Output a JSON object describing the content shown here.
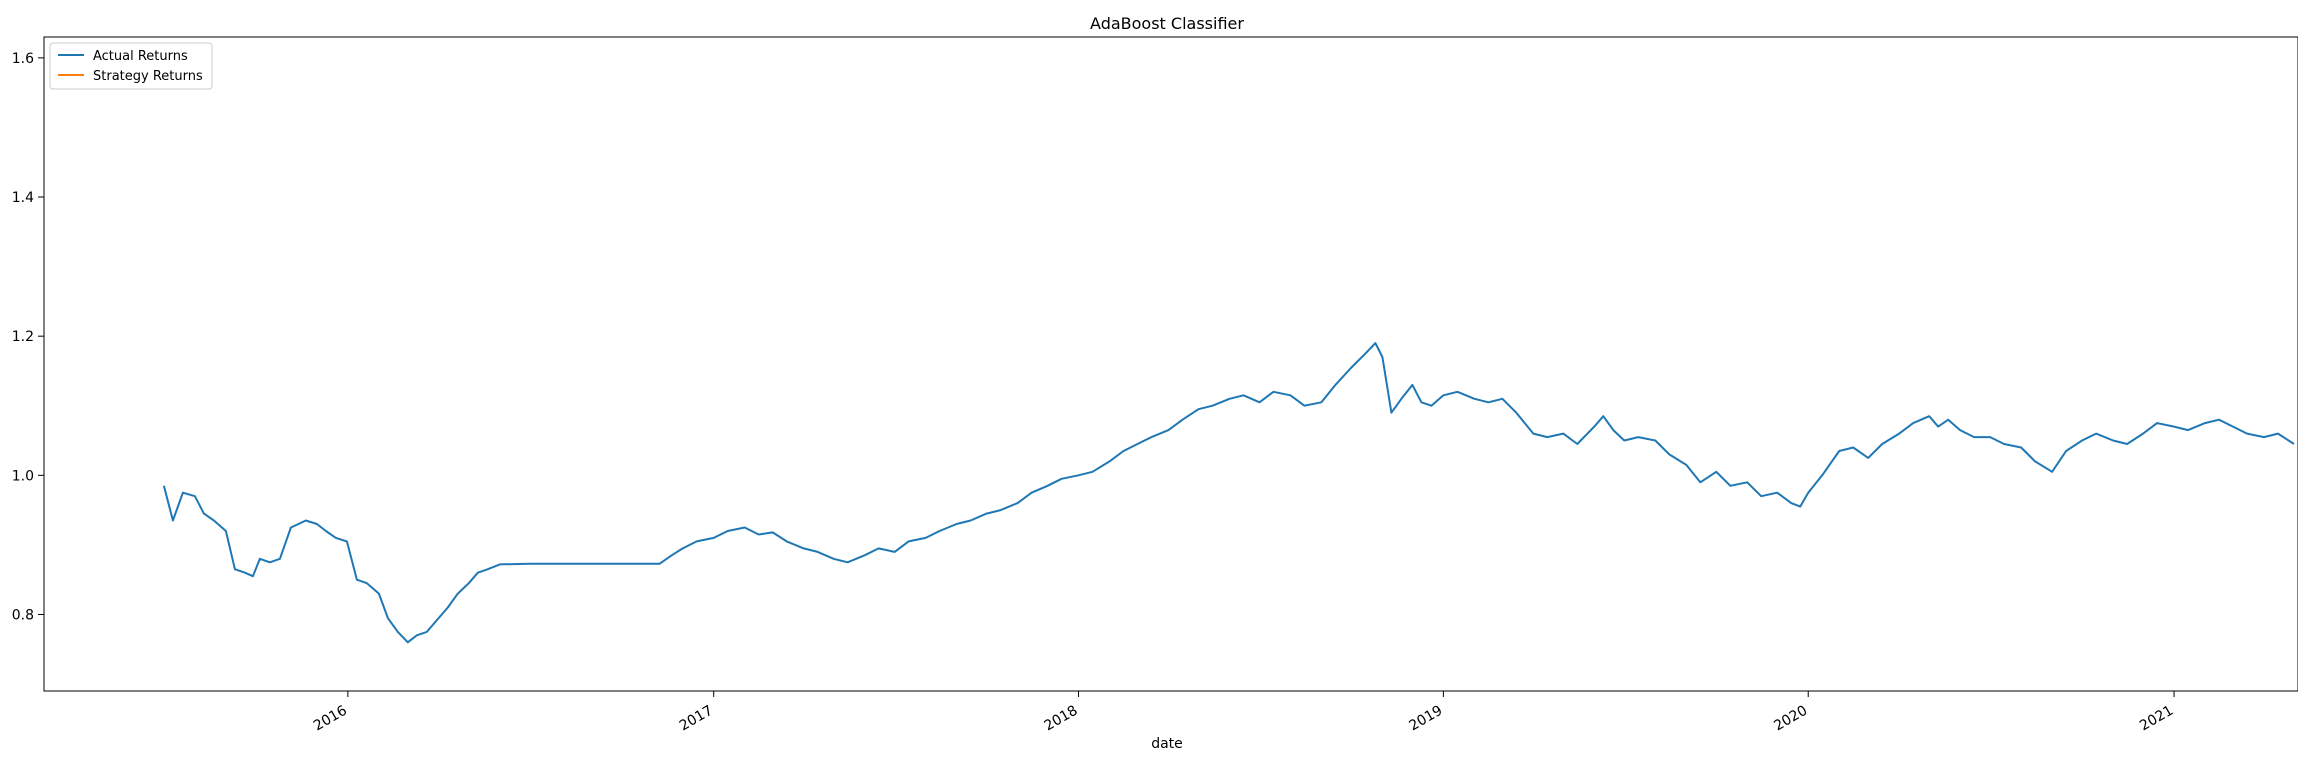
{
  "chart_data": {
    "type": "line",
    "title": "AdaBoost Classifier",
    "xlabel": "date",
    "ylabel": "",
    "ylim": [
      0.69,
      1.63
    ],
    "xlim": [
      "2015-03-03",
      "2021-05-05"
    ],
    "grid": false,
    "legend_position": "upper-left",
    "x_ticks": [
      "2016",
      "2017",
      "2018",
      "2019",
      "2020",
      "2021"
    ],
    "y_ticks": [
      "0.8",
      "1.0",
      "1.2",
      "1.4",
      "1.6"
    ],
    "colors": {
      "actual": "#1f77b4",
      "strategy": "#ff7f0e"
    },
    "series": [
      {
        "name": "Actual Returns",
        "points": [
          [
            "2015-07-01",
            0.985
          ],
          [
            "2015-07-10",
            0.935
          ],
          [
            "2015-07-20",
            0.975
          ],
          [
            "2015-08-01",
            0.97
          ],
          [
            "2015-08-10",
            0.945
          ],
          [
            "2015-08-20",
            0.935
          ],
          [
            "2015-09-01",
            0.92
          ],
          [
            "2015-09-10",
            0.865
          ],
          [
            "2015-09-20",
            0.86
          ],
          [
            "2015-09-28",
            0.855
          ],
          [
            "2015-10-05",
            0.88
          ],
          [
            "2015-10-15",
            0.875
          ],
          [
            "2015-10-25",
            0.88
          ],
          [
            "2015-11-05",
            0.925
          ],
          [
            "2015-11-20",
            0.935
          ],
          [
            "2015-12-01",
            0.93
          ],
          [
            "2015-12-10",
            0.92
          ],
          [
            "2015-12-20",
            0.91
          ],
          [
            "2015-12-31",
            0.905
          ],
          [
            "2016-01-10",
            0.85
          ],
          [
            "2016-01-20",
            0.845
          ],
          [
            "2016-02-01",
            0.83
          ],
          [
            "2016-02-10",
            0.795
          ],
          [
            "2016-02-20",
            0.775
          ],
          [
            "2016-03-01",
            0.76
          ],
          [
            "2016-03-10",
            0.77
          ],
          [
            "2016-03-20",
            0.775
          ],
          [
            "2016-04-01",
            0.795
          ],
          [
            "2016-04-10",
            0.81
          ],
          [
            "2016-04-20",
            0.83
          ],
          [
            "2016-05-01",
            0.845
          ],
          [
            "2016-05-10",
            0.86
          ],
          [
            "2016-05-20",
            0.865
          ],
          [
            "2016-06-01",
            0.872
          ],
          [
            "2016-07-01",
            0.873
          ],
          [
            "2016-11-08",
            0.873
          ],
          [
            "2016-11-20",
            0.885
          ],
          [
            "2016-12-01",
            0.895
          ],
          [
            "2016-12-15",
            0.905
          ],
          [
            "2017-01-01",
            0.91
          ],
          [
            "2017-01-15",
            0.92
          ],
          [
            "2017-02-01",
            0.925
          ],
          [
            "2017-02-15",
            0.915
          ],
          [
            "2017-03-01",
            0.918
          ],
          [
            "2017-03-15",
            0.905
          ],
          [
            "2017-04-01",
            0.895
          ],
          [
            "2017-04-15",
            0.89
          ],
          [
            "2017-05-01",
            0.88
          ],
          [
            "2017-05-15",
            0.875
          ],
          [
            "2017-06-01",
            0.885
          ],
          [
            "2017-06-15",
            0.895
          ],
          [
            "2017-07-01",
            0.89
          ],
          [
            "2017-07-15",
            0.905
          ],
          [
            "2017-08-01",
            0.91
          ],
          [
            "2017-08-15",
            0.92
          ],
          [
            "2017-09-01",
            0.93
          ],
          [
            "2017-09-15",
            0.935
          ],
          [
            "2017-10-01",
            0.945
          ],
          [
            "2017-10-15",
            0.95
          ],
          [
            "2017-11-01",
            0.96
          ],
          [
            "2017-11-15",
            0.975
          ],
          [
            "2017-12-01",
            0.985
          ],
          [
            "2017-12-15",
            0.995
          ],
          [
            "2018-01-01",
            1.0
          ],
          [
            "2018-01-15",
            1.005
          ],
          [
            "2018-02-01",
            1.02
          ],
          [
            "2018-02-15",
            1.035
          ],
          [
            "2018-03-01",
            1.045
          ],
          [
            "2018-03-15",
            1.055
          ],
          [
            "2018-04-01",
            1.065
          ],
          [
            "2018-04-15",
            1.08
          ],
          [
            "2018-05-01",
            1.095
          ],
          [
            "2018-05-15",
            1.1
          ],
          [
            "2018-06-01",
            1.11
          ],
          [
            "2018-06-15",
            1.115
          ],
          [
            "2018-07-01",
            1.105
          ],
          [
            "2018-07-15",
            1.12
          ],
          [
            "2018-08-01",
            1.115
          ],
          [
            "2018-08-15",
            1.1
          ],
          [
            "2018-09-01",
            1.105
          ],
          [
            "2018-09-15",
            1.13
          ],
          [
            "2018-10-01",
            1.155
          ],
          [
            "2018-10-15",
            1.175
          ],
          [
            "2018-10-25",
            1.19
          ],
          [
            "2018-11-01",
            1.17
          ],
          [
            "2018-11-10",
            1.09
          ],
          [
            "2018-11-20",
            1.11
          ],
          [
            "2018-12-01",
            1.13
          ],
          [
            "2018-12-10",
            1.105
          ],
          [
            "2018-12-20",
            1.1
          ],
          [
            "2019-01-01",
            1.115
          ],
          [
            "2019-01-15",
            1.12
          ],
          [
            "2019-02-01",
            1.11
          ],
          [
            "2019-02-15",
            1.105
          ],
          [
            "2019-03-01",
            1.11
          ],
          [
            "2019-03-15",
            1.09
          ],
          [
            "2019-04-01",
            1.06
          ],
          [
            "2019-04-15",
            1.055
          ],
          [
            "2019-05-01",
            1.06
          ],
          [
            "2019-05-15",
            1.045
          ],
          [
            "2019-06-01",
            1.07
          ],
          [
            "2019-06-10",
            1.085
          ],
          [
            "2019-06-20",
            1.065
          ],
          [
            "2019-07-01",
            1.05
          ],
          [
            "2019-07-15",
            1.055
          ],
          [
            "2019-08-01",
            1.05
          ],
          [
            "2019-08-15",
            1.03
          ],
          [
            "2019-09-01",
            1.015
          ],
          [
            "2019-09-15",
            0.99
          ],
          [
            "2019-10-01",
            1.005
          ],
          [
            "2019-10-15",
            0.985
          ],
          [
            "2019-11-01",
            0.99
          ],
          [
            "2019-11-15",
            0.97
          ],
          [
            "2019-12-01",
            0.975
          ],
          [
            "2019-12-15",
            0.96
          ],
          [
            "2019-12-24",
            0.955
          ],
          [
            "2020-01-01",
            0.975
          ],
          [
            "2020-01-15",
            1.0
          ],
          [
            "2020-02-01",
            1.035
          ],
          [
            "2020-02-15",
            1.04
          ],
          [
            "2020-03-01",
            1.025
          ],
          [
            "2020-03-15",
            1.045
          ],
          [
            "2020-04-01",
            1.06
          ],
          [
            "2020-04-15",
            1.075
          ],
          [
            "2020-05-01",
            1.085
          ],
          [
            "2020-05-10",
            1.07
          ],
          [
            "2020-05-20",
            1.08
          ],
          [
            "2020-06-01",
            1.065
          ],
          [
            "2020-06-15",
            1.055
          ],
          [
            "2020-07-01",
            1.055
          ],
          [
            "2020-07-15",
            1.045
          ],
          [
            "2020-08-01",
            1.04
          ],
          [
            "2020-08-15",
            1.02
          ],
          [
            "2020-09-01",
            1.005
          ],
          [
            "2020-09-15",
            1.035
          ],
          [
            "2020-10-01",
            1.05
          ],
          [
            "2020-10-15",
            1.06
          ],
          [
            "2020-11-01",
            1.05
          ],
          [
            "2020-11-15",
            1.045
          ],
          [
            "2020-12-01",
            1.06
          ],
          [
            "2020-12-15",
            1.075
          ],
          [
            "2021-01-01",
            1.07
          ],
          [
            "2021-01-15",
            1.065
          ],
          [
            "2021-02-01",
            1.075
          ],
          [
            "2021-02-15",
            1.08
          ],
          [
            "2021-03-01",
            1.07
          ],
          [
            "2021-03-15",
            1.06
          ],
          [
            "2021-04-01",
            1.055
          ],
          [
            "2021-04-15",
            1.06
          ],
          [
            "2021-05-01",
            1.045
          ]
        ]
      },
      {
        "name": "Strategy Returns",
        "points": []
      }
    ]
  }
}
